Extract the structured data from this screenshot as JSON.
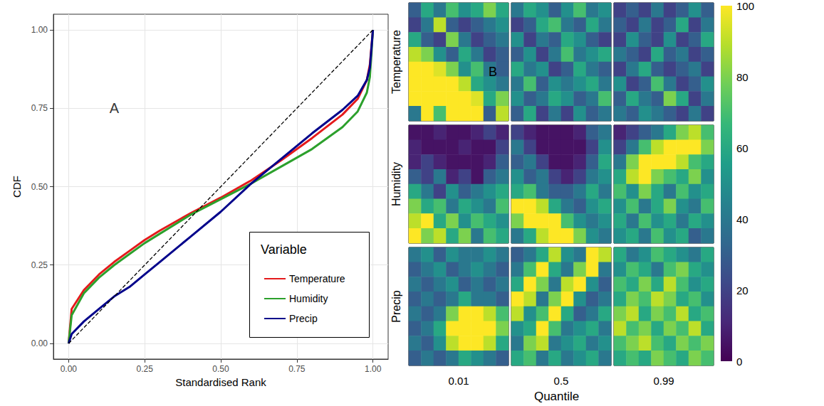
{
  "chart_data": [
    {
      "type": "line",
      "xlabel": "Standardised Rank",
      "ylabel": "CDF",
      "xlim": [
        -0.05,
        1.05
      ],
      "ylim": [
        -0.05,
        1.05
      ],
      "xticks": [
        {
          "value": 0,
          "label": "0.00"
        },
        {
          "value": 0.25,
          "label": "0.25"
        },
        {
          "value": 0.5,
          "label": "0.50"
        },
        {
          "value": 0.75,
          "label": "0.75"
        },
        {
          "value": 1,
          "label": "1.00"
        }
      ],
      "yticks": [
        {
          "value": 0,
          "label": "0.00"
        },
        {
          "value": 0.25,
          "label": "0.25"
        },
        {
          "value": 0.5,
          "label": "0.50"
        },
        {
          "value": 0.75,
          "label": "0.75"
        },
        {
          "value": 1,
          "label": "1.00"
        }
      ],
      "grid": true,
      "legend": "bottom-right",
      "legend_title": "Variable",
      "annotations": [
        {
          "text": "A",
          "x": 0.15,
          "y": 0.75
        }
      ],
      "series": [
        {
          "name": "Temperature",
          "color": "#e41a1c",
          "x": [
            0,
            0.01,
            0.05,
            0.1,
            0.15,
            0.2,
            0.25,
            0.3,
            0.4,
            0.5,
            0.6,
            0.7,
            0.8,
            0.9,
            0.95,
            0.98,
            0.99,
            1
          ],
          "values": [
            0,
            0.11,
            0.17,
            0.22,
            0.26,
            0.295,
            0.33,
            0.36,
            0.415,
            0.465,
            0.52,
            0.585,
            0.655,
            0.73,
            0.78,
            0.84,
            0.89,
            1
          ]
        },
        {
          "name": "Humidity",
          "color": "#2ca02c",
          "x": [
            0,
            0.01,
            0.05,
            0.1,
            0.15,
            0.2,
            0.25,
            0.3,
            0.4,
            0.5,
            0.6,
            0.7,
            0.8,
            0.9,
            0.95,
            0.98,
            0.99,
            1
          ],
          "values": [
            0,
            0.09,
            0.16,
            0.21,
            0.25,
            0.285,
            0.32,
            0.35,
            0.41,
            0.46,
            0.51,
            0.565,
            0.62,
            0.69,
            0.74,
            0.8,
            0.85,
            1
          ]
        },
        {
          "name": "Precip",
          "color": "#00008b",
          "x": [
            0,
            0.01,
            0.05,
            0.1,
            0.15,
            0.2,
            0.25,
            0.3,
            0.4,
            0.5,
            0.6,
            0.7,
            0.8,
            0.9,
            0.95,
            0.98,
            0.99,
            1
          ],
          "values": [
            0,
            0.03,
            0.07,
            0.11,
            0.15,
            0.18,
            0.22,
            0.26,
            0.34,
            0.42,
            0.51,
            0.59,
            0.67,
            0.745,
            0.79,
            0.84,
            0.88,
            1
          ]
        },
        {
          "color": "#000000",
          "line_style": "dashed",
          "x": [
            0,
            1
          ],
          "values": [
            0,
            1
          ]
        }
      ]
    },
    {
      "type": "heatmap",
      "rows": [
        "Temperature",
        "Humidity",
        "Precip"
      ],
      "columns": [
        "0.01",
        "0.5",
        "0.99"
      ],
      "xlabel": "Quantile",
      "annotation": "B",
      "colorbar_range": [
        0,
        100
      ],
      "colorbar_ticks": [
        0,
        20,
        40,
        60,
        80,
        100
      ],
      "panels": [
        [
          [
            [
              30,
              60,
              40,
              70,
              50,
              60,
              80,
              60
            ],
            [
              20,
              40,
              90,
              30,
              20,
              30,
              40,
              50
            ],
            [
              60,
              30,
              20,
              80,
              40,
              20,
              30,
              40
            ],
            [
              90,
              80,
              50,
              30,
              60,
              40,
              20,
              30
            ],
            [
              100,
              100,
              95,
              80,
              50,
              70,
              40,
              30
            ],
            [
              100,
              100,
              100,
              100,
              90,
              60,
              50,
              40
            ],
            [
              100,
              100,
              100,
              100,
              100,
              95,
              60,
              80
            ],
            [
              40,
              100,
              70,
              100,
              100,
              100,
              30,
              90
            ]
          ],
          [
            [
              40,
              60,
              50,
              30,
              50,
              70,
              40,
              50
            ],
            [
              20,
              30,
              60,
              70,
              40,
              30,
              60,
              40
            ],
            [
              50,
              20,
              40,
              30,
              60,
              50,
              30,
              20
            ],
            [
              30,
              50,
              20,
              40,
              70,
              40,
              50,
              60
            ],
            [
              60,
              40,
              50,
              20,
              30,
              60,
              40,
              30
            ],
            [
              40,
              70,
              30,
              50,
              40,
              50,
              60,
              40
            ],
            [
              50,
              30,
              40,
              60,
              50,
              30,
              40,
              70
            ],
            [
              30,
              60,
              20,
              40,
              20,
              50,
              30,
              40
            ]
          ],
          [
            [
              20,
              30,
              20,
              40,
              20,
              30,
              50,
              30
            ],
            [
              30,
              20,
              40,
              20,
              30,
              60,
              20,
              40
            ],
            [
              20,
              50,
              30,
              20,
              50,
              20,
              30,
              60
            ],
            [
              40,
              30,
              20,
              60,
              30,
              40,
              20,
              30
            ],
            [
              20,
              40,
              60,
              30,
              20,
              30,
              40,
              20
            ],
            [
              50,
              20,
              30,
              70,
              40,
              20,
              30,
              50
            ],
            [
              30,
              60,
              40,
              30,
              80,
              60,
              20,
              40
            ],
            [
              40,
              30,
              50,
              40,
              30,
              20,
              40,
              20
            ]
          ]
        ],
        [
          [
            [
              5,
              5,
              10,
              5,
              5,
              10,
              20,
              10
            ],
            [
              10,
              5,
              5,
              5,
              10,
              5,
              5,
              20
            ],
            [
              10,
              20,
              10,
              5,
              5,
              5,
              10,
              30
            ],
            [
              30,
              20,
              40,
              10,
              20,
              5,
              30,
              40
            ],
            [
              60,
              40,
              20,
              50,
              30,
              40,
              50,
              60
            ],
            [
              80,
              60,
              70,
              40,
              60,
              50,
              40,
              70
            ],
            [
              90,
              100,
              60,
              80,
              50,
              70,
              60,
              50
            ],
            [
              100,
              80,
              90,
              60,
              80,
              40,
              70,
              60
            ]
          ],
          [
            [
              20,
              10,
              5,
              5,
              5,
              10,
              30,
              40
            ],
            [
              40,
              20,
              5,
              5,
              5,
              5,
              20,
              50
            ],
            [
              30,
              40,
              20,
              5,
              5,
              10,
              30,
              60
            ],
            [
              50,
              30,
              40,
              20,
              10,
              20,
              40,
              50
            ],
            [
              60,
              70,
              40,
              30,
              30,
              40,
              60,
              40
            ],
            [
              100,
              100,
              90,
              60,
              40,
              30,
              50,
              60
            ],
            [
              80,
              100,
              100,
              100,
              70,
              50,
              40,
              50
            ],
            [
              40,
              60,
              90,
              100,
              100,
              80,
              50,
              40
            ]
          ],
          [
            [
              10,
              20,
              30,
              40,
              60,
              80,
              90,
              70
            ],
            [
              20,
              40,
              70,
              90,
              100,
              100,
              100,
              80
            ],
            [
              40,
              80,
              100,
              100,
              100,
              90,
              70,
              60
            ],
            [
              60,
              90,
              100,
              80,
              70,
              60,
              80,
              50
            ],
            [
              70,
              50,
              80,
              60,
              40,
              70,
              50,
              60
            ],
            [
              50,
              70,
              40,
              60,
              80,
              50,
              40,
              70
            ],
            [
              60,
              40,
              70,
              50,
              60,
              40,
              60,
              50
            ],
            [
              50,
              60,
              40,
              70,
              50,
              60,
              30,
              40
            ]
          ]
        ],
        [
          [
            [
              40,
              50,
              30,
              50,
              40,
              40,
              50,
              40
            ],
            [
              30,
              40,
              50,
              30,
              40,
              50,
              40,
              30
            ],
            [
              40,
              30,
              40,
              50,
              30,
              40,
              30,
              40
            ],
            [
              30,
              40,
              30,
              40,
              60,
              40,
              40,
              30
            ],
            [
              40,
              30,
              40,
              80,
              100,
              100,
              90,
              70
            ],
            [
              30,
              40,
              60,
              100,
              100,
              100,
              100,
              80
            ],
            [
              40,
              30,
              50,
              90,
              100,
              100,
              90,
              60
            ],
            [
              30,
              40,
              30,
              40,
              60,
              50,
              40,
              30
            ]
          ],
          [
            [
              30,
              40,
              60,
              90,
              50,
              40,
              100,
              90
            ],
            [
              40,
              70,
              100,
              60,
              40,
              80,
              100,
              40
            ],
            [
              60,
              100,
              80,
              40,
              90,
              100,
              50,
              30
            ],
            [
              100,
              90,
              40,
              80,
              100,
              50,
              30,
              40
            ],
            [
              90,
              50,
              70,
              100,
              60,
              30,
              40,
              60
            ],
            [
              50,
              60,
              100,
              70,
              40,
              50,
              60,
              40
            ],
            [
              40,
              80,
              90,
              40,
              50,
              60,
              40,
              50
            ],
            [
              60,
              70,
              40,
              60,
              40,
              50,
              60,
              40
            ]
          ],
          [
            [
              60,
              40,
              50,
              70,
              60,
              50,
              40,
              60
            ],
            [
              50,
              70,
              60,
              40,
              70,
              80,
              60,
              50
            ],
            [
              70,
              60,
              80,
              60,
              90,
              70,
              50,
              60
            ],
            [
              60,
              80,
              70,
              90,
              80,
              60,
              70,
              50
            ],
            [
              80,
              90,
              60,
              80,
              70,
              90,
              60,
              70
            ],
            [
              90,
              70,
              80,
              60,
              80,
              70,
              90,
              60
            ],
            [
              70,
              80,
              90,
              70,
              60,
              80,
              70,
              80
            ],
            [
              60,
              70,
              60,
              80,
              70,
              60,
              80,
              70
            ]
          ]
        ]
      ]
    }
  ]
}
